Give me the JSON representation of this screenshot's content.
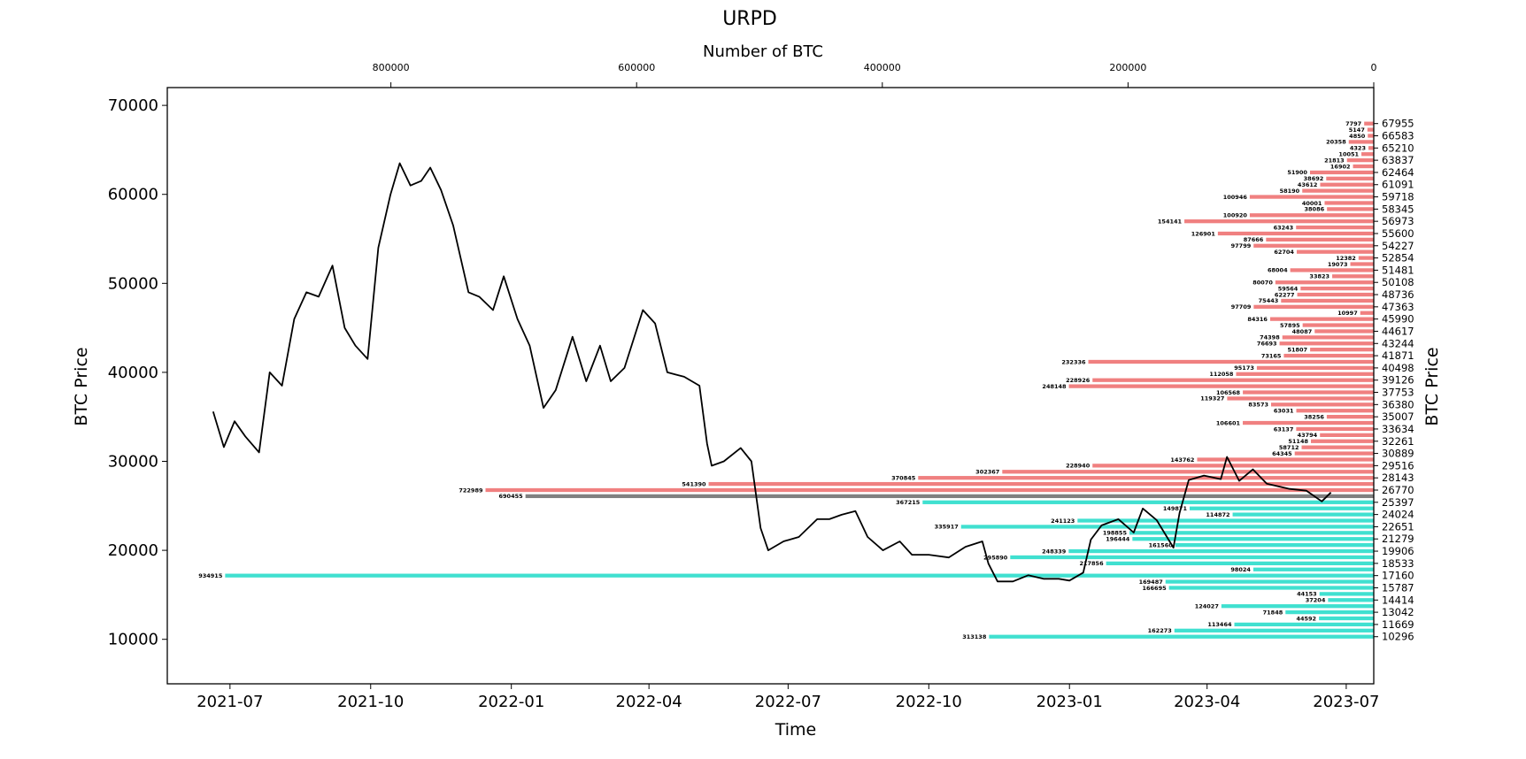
{
  "chart_data": {
    "type": "line",
    "title": "URPD",
    "top_xlabel": "Number of BTC",
    "xlabel": "Time",
    "ylabel_left": "BTC Price",
    "ylabel_right": "BTC Price",
    "ylim": [
      5000,
      72000
    ],
    "yticks": [
      10000,
      20000,
      30000,
      40000,
      50000,
      60000,
      70000
    ],
    "xticks": [
      "2021-07",
      "2021-10",
      "2022-01",
      "2022-04",
      "2022-07",
      "2022-10",
      "2023-01",
      "2023-04",
      "2023-07"
    ],
    "top_xticks": [
      800000,
      600000,
      400000,
      200000,
      0
    ],
    "top_xlim": [
      982000,
      0
    ],
    "price_series": {
      "name": "",
      "x": [
        "2021-06-20",
        "2021-06-27",
        "2021-07-04",
        "2021-07-11",
        "2021-07-20",
        "2021-07-27",
        "2021-08-04",
        "2021-08-12",
        "2021-08-20",
        "2021-08-28",
        "2021-09-06",
        "2021-09-14",
        "2021-09-21",
        "2021-09-29",
        "2021-10-06",
        "2021-10-14",
        "2021-10-20",
        "2021-10-27",
        "2021-11-03",
        "2021-11-09",
        "2021-11-16",
        "2021-11-24",
        "2021-12-04",
        "2021-12-11",
        "2021-12-20",
        "2021-12-27",
        "2022-01-05",
        "2022-01-13",
        "2022-01-22",
        "2022-01-30",
        "2022-02-10",
        "2022-02-19",
        "2022-02-28",
        "2022-03-07",
        "2022-03-16",
        "2022-03-28",
        "2022-04-05",
        "2022-04-13",
        "2022-04-24",
        "2022-05-04",
        "2022-05-09",
        "2022-05-12",
        "2022-05-20",
        "2022-05-31",
        "2022-06-07",
        "2022-06-13",
        "2022-06-18",
        "2022-06-28",
        "2022-07-08",
        "2022-07-20",
        "2022-07-28",
        "2022-08-05",
        "2022-08-14",
        "2022-08-22",
        "2022-09-01",
        "2022-09-12",
        "2022-09-20",
        "2022-10-01",
        "2022-10-14",
        "2022-10-25",
        "2022-11-05",
        "2022-11-09",
        "2022-11-15",
        "2022-11-25",
        "2022-12-05",
        "2022-12-15",
        "2022-12-25",
        "2023-01-01",
        "2023-01-10",
        "2023-01-15",
        "2023-01-22",
        "2023-02-02",
        "2023-02-12",
        "2023-02-18",
        "2023-02-27",
        "2023-03-10",
        "2023-03-14",
        "2023-03-20",
        "2023-03-30",
        "2023-04-10",
        "2023-04-14",
        "2023-04-22",
        "2023-05-01",
        "2023-05-10",
        "2023-05-25",
        "2023-06-05",
        "2023-06-15",
        "2023-06-21"
      ],
      "y": [
        35600,
        31600,
        34500,
        32800,
        31000,
        40000,
        38500,
        46000,
        49000,
        48500,
        52000,
        45000,
        43000,
        41500,
        54000,
        60000,
        63500,
        61000,
        61500,
        63000,
        60500,
        56500,
        49000,
        48500,
        47000,
        50800,
        46000,
        43000,
        36000,
        38000,
        44000,
        39000,
        43000,
        39000,
        40500,
        47000,
        45500,
        40000,
        39500,
        38500,
        32000,
        29500,
        30000,
        31500,
        30000,
        22500,
        20000,
        21000,
        21500,
        23500,
        23500,
        24000,
        24400,
        21500,
        20000,
        21000,
        19500,
        19500,
        19200,
        20400,
        21000,
        18500,
        16500,
        16500,
        17200,
        16800,
        16800,
        16600,
        17500,
        21200,
        22800,
        23500,
        22000,
        24700,
        23400,
        20300,
        24200,
        27900,
        28400,
        28000,
        30500,
        27800,
        29100,
        27500,
        26900,
        26700,
        25500,
        26500
      ]
    },
    "urpd_bars": {
      "price_buckets": [
        67955,
        67269,
        66583,
        65896,
        65210,
        64523,
        63837,
        63150,
        62464,
        61778,
        61091,
        60405,
        59718,
        59032,
        58345,
        57659,
        56973,
        56286,
        55600,
        54914,
        54227,
        53541,
        52854,
        52168,
        51481,
        50795,
        50108,
        49422,
        48736,
        48049,
        47363,
        46676,
        45990,
        45304,
        44617,
        43931,
        43244,
        42558,
        41871,
        41185,
        40498,
        39812,
        39126,
        38439,
        37753,
        37066,
        36380,
        35694,
        35007,
        34321,
        33634,
        32948,
        32261,
        31575,
        30889,
        30202,
        29516,
        28829,
        28143,
        27457,
        26770,
        26084,
        25397,
        24711,
        24024,
        23338,
        22651,
        21965,
        21279,
        20592,
        19906,
        19219,
        18533,
        17847,
        17160,
        16474,
        15787,
        15101,
        14414,
        13728,
        13042,
        12355,
        11669,
        10983,
        10296
      ],
      "printed_prices": [
        67955,
        66583,
        65210,
        63837,
        62464,
        61091,
        59718,
        58345,
        56973,
        55600,
        54227,
        52854,
        51481,
        50108,
        48736,
        47363,
        45990,
        44617,
        43244,
        41871,
        40498,
        39126,
        37753,
        36380,
        35007,
        33634,
        32261,
        30889,
        29516,
        28143,
        26770,
        25397,
        24024,
        22651,
        21279,
        19906,
        18533,
        17160,
        15787,
        14414,
        13042,
        11669,
        10296
      ],
      "values": [
        7797,
        5147,
        4850,
        20358,
        4323,
        10051,
        21813,
        16902,
        51900,
        38692,
        43612,
        58190,
        100946,
        40001,
        38086,
        100920,
        154141,
        63243,
        126901,
        87666,
        97799,
        62704,
        12382,
        19073,
        68004,
        33823,
        80070,
        59564,
        62277,
        75443,
        97709,
        10997,
        84316,
        57895,
        48087,
        74398,
        76693,
        51807,
        73165,
        232336,
        95173,
        112058,
        228926,
        248148,
        106568,
        119327,
        83573,
        63031,
        38256,
        106601,
        63137,
        43794,
        51148,
        58712,
        64345,
        143762,
        228940,
        302367,
        370845,
        541390,
        722989,
        690455,
        367215,
        149871,
        114872,
        241123,
        335917,
        198855,
        196444,
        161560,
        248339,
        295890,
        217856,
        98024,
        934915,
        169487,
        166695,
        44153,
        37204,
        124027,
        71848,
        44592,
        113464,
        162273,
        313138
      ],
      "current_bucket_index": 61,
      "colors": {
        "above": "#f08080",
        "below": "#40e0d0",
        "current": "#808080",
        "price_line": "#000000"
      }
    }
  }
}
